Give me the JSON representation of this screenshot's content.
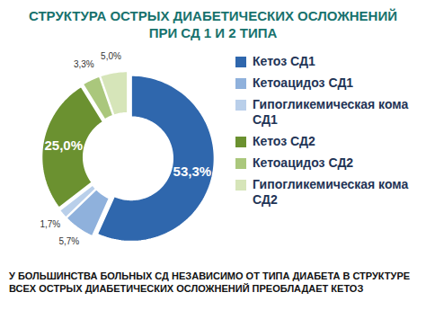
{
  "chart_data": {
    "type": "pie",
    "title": "СТРУКТУРА ОСТРЫХ ДИАБЕТИЧЕСКИХ ОСЛОЖНЕНИЙ ПРИ СД 1 И 2 ТИПА",
    "caption": "У БОЛЬШИНСТВА БОЛЬНЫХ СД НЕЗАВИСИМО ОТ ТИПА ДИАБЕТА В СТРУКТУРЕ ВСЕХ ОСТРЫХ ДИАБЕТИЧЕСКИХ ОСЛОЖНЕНИЙ ПРЕОБЛАДАЕТ КЕТОЗ",
    "categories": [
      "Кетоз СД1",
      "Кетоацидоз СД1",
      "Гипогликемическая кома СД1",
      "Кетоз СД2",
      "Кетоацидоз СД2",
      "Гипогликемическая кома СД2"
    ],
    "values": [
      53.3,
      5.7,
      1.7,
      25.0,
      3.3,
      5.0
    ],
    "value_labels": [
      "53,3%",
      "5,7%",
      "1,7%",
      "25,0%",
      "3,3%",
      "5,0%"
    ],
    "colors": [
      "#2f67ad",
      "#8fb1dc",
      "#b9cfea",
      "#6b9130",
      "#aac77c",
      "#d6e5b9"
    ],
    "data_labels": true,
    "legend": "right"
  }
}
